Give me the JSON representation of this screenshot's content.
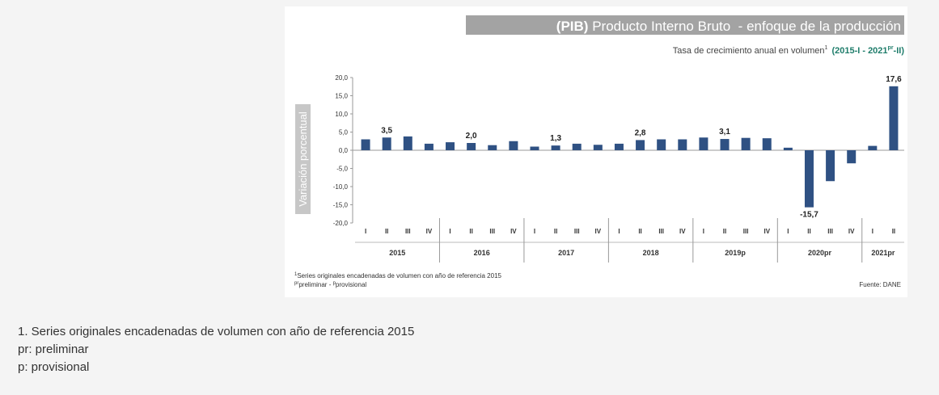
{
  "chart_data": {
    "type": "bar",
    "title_bold": "(PIB)",
    "title_rest": " Producto Interno Bruto  - enfoque de la producción",
    "subtitle": "Tasa de crecimiento anual en volumen",
    "subtitle_mark": "1",
    "subtitle_range_a": "(2015-I - 2021",
    "subtitle_range_sup": "pr",
    "subtitle_range_b": "-II)",
    "ylabel": "Variación porcentual",
    "ylim": [
      -20,
      20
    ],
    "yticks": [
      "20,0",
      "15,0",
      "10,0",
      "5,0",
      "0,0",
      "-5,0",
      "-10,0",
      "-15,0",
      "-20,0"
    ],
    "ytick_values": [
      20,
      15,
      10,
      5,
      0,
      -5,
      -10,
      -15,
      -20
    ],
    "categories": [
      "I",
      "II",
      "III",
      "IV",
      "I",
      "II",
      "III",
      "IV",
      "I",
      "II",
      "III",
      "IV",
      "I",
      "II",
      "III",
      "IV",
      "I",
      "II",
      "III",
      "IV",
      "I",
      "II",
      "III",
      "IV",
      "I",
      "II"
    ],
    "years": [
      {
        "label": "2015",
        "count": 4
      },
      {
        "label": "2016",
        "count": 4
      },
      {
        "label": "2017",
        "count": 4
      },
      {
        "label": "2018",
        "count": 4
      },
      {
        "label": "2019p",
        "count": 4
      },
      {
        "label": "2020pr",
        "count": 4
      },
      {
        "label": "2021pr",
        "count": 2
      }
    ],
    "values": [
      3.0,
      3.5,
      3.8,
      1.8,
      2.2,
      2.0,
      1.4,
      2.5,
      1.0,
      1.3,
      1.8,
      1.5,
      1.8,
      2.8,
      3.0,
      3.0,
      3.5,
      3.1,
      3.4,
      3.3,
      0.7,
      -15.7,
      -8.5,
      -3.6,
      1.2,
      17.6
    ],
    "data_labels": [
      {
        "index": 1,
        "text": "3,5"
      },
      {
        "index": 5,
        "text": "2,0"
      },
      {
        "index": 9,
        "text": "1,3"
      },
      {
        "index": 13,
        "text": "2,8"
      },
      {
        "index": 17,
        "text": "3,1"
      },
      {
        "index": 21,
        "text": "-15,7"
      },
      {
        "index": 25,
        "text": "17,6"
      }
    ],
    "note_line1": "Series originales encadenadas de volumen con año de referencia 2015",
    "note_line1_mark": "1",
    "note_line2": "preliminar - ",
    "note_line2_mark": "pr",
    "note_line2_b": "provisional",
    "note_line2_mark_b": "p",
    "source": "Fuente: DANE",
    "colors": {
      "bar": "#2f5183",
      "title_bg": "#a3a3a3",
      "ylabel_bg": "#c7c7c7",
      "accent": "#1f7d6b"
    }
  },
  "footnotes": [
    "1. Series originales encadenadas de volumen con año de referencia 2015",
    "pr: preliminar",
    "p: provisional"
  ]
}
